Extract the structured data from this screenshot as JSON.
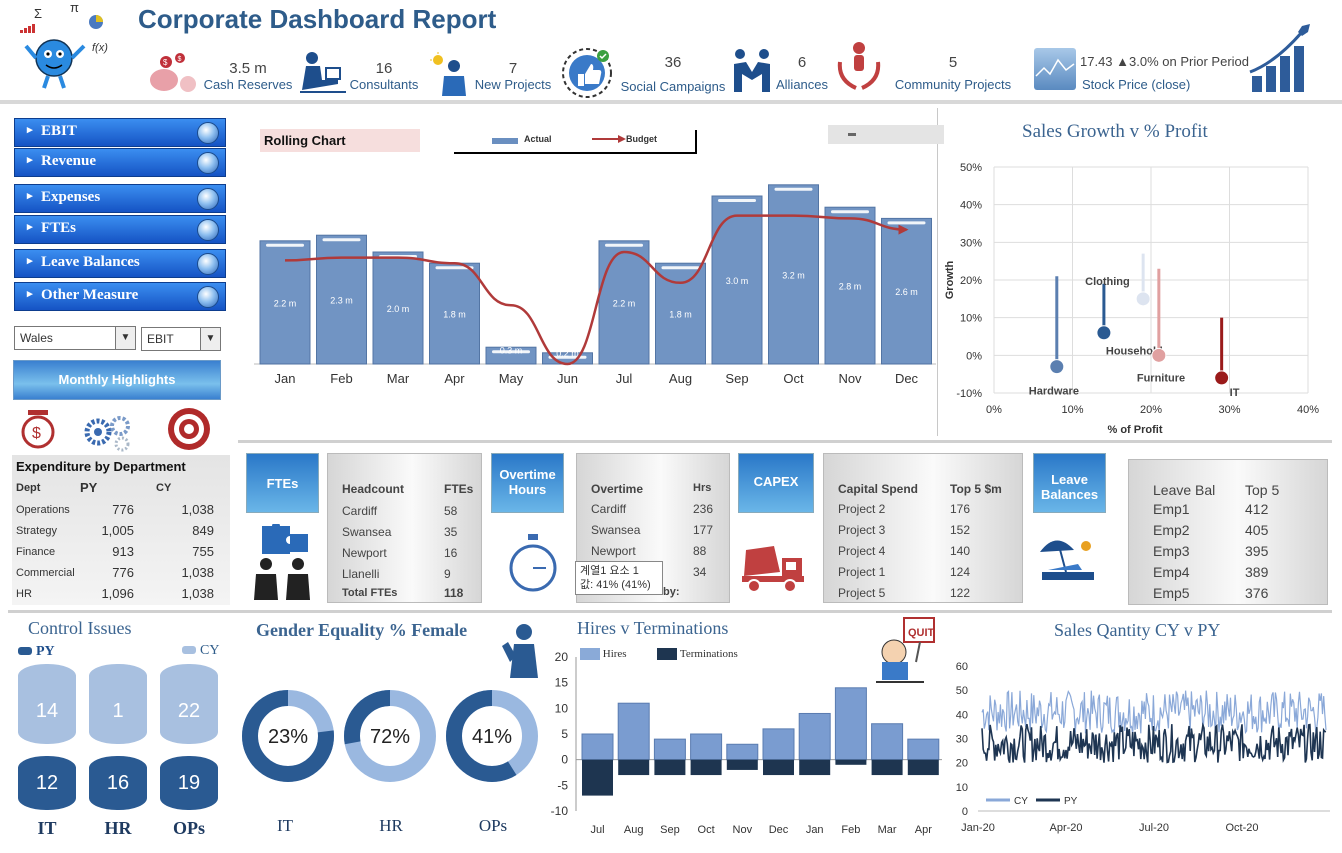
{
  "header": {
    "title": "Corporate Dashboard Report",
    "math_symbols": [
      "Σ",
      "π",
      "f(x)"
    ],
    "kpis": [
      {
        "value": "3.5 m",
        "label": "Cash Reserves",
        "icon": "piggy-bank-icon"
      },
      {
        "value": "16",
        "label": "Consultants",
        "icon": "consultant-icon"
      },
      {
        "value": "7",
        "label": "New Projects",
        "icon": "idea-person-icon"
      },
      {
        "value": "36",
        "label": "Social Campaigns",
        "icon": "thumbs-up-icon"
      },
      {
        "value": "6",
        "label": "Alliances",
        "icon": "handshake-icon"
      },
      {
        "value": "5",
        "label": "Community Projects",
        "icon": "helping-hands-icon"
      }
    ],
    "stock": {
      "value": "17.43",
      "change": "▲3.0% on Prior Period",
      "label": "Stock Price (close)"
    }
  },
  "nav": {
    "items": [
      "EBIT",
      "Revenue",
      "Expenses",
      "FTEs",
      "Leave Balances",
      "Other Measure"
    ],
    "region_select": "Wales",
    "measure_select": "EBIT",
    "highlights_label": "Monthly Highlights"
  },
  "expenditure": {
    "title": "Expenditure by Department",
    "headers": [
      "Dept",
      "PY",
      "CY"
    ],
    "rows": [
      [
        "Operations",
        "776",
        "1,038"
      ],
      [
        "Strategy",
        "1,005",
        "849"
      ],
      [
        "Finance",
        "913",
        "755"
      ],
      [
        "Commercial",
        "776",
        "1,038"
      ],
      [
        "HR",
        "1,096",
        "1,038"
      ]
    ]
  },
  "rolling": {
    "title": "Rolling Chart",
    "legend_actual": "Actual",
    "legend_budget": "Budget",
    "colors": {
      "bar": "#6a8fc0",
      "line": "#b03a3a"
    }
  },
  "chart_data": [
    {
      "type": "bar",
      "title": "Rolling Chart",
      "categories": [
        "Jan",
        "Feb",
        "Mar",
        "Apr",
        "May",
        "Jun",
        "Jul",
        "Aug",
        "Sep",
        "Oct",
        "Nov",
        "Dec"
      ],
      "series": [
        {
          "name": "Actual",
          "values": [
            2.2,
            2.3,
            2.0,
            1.8,
            0.3,
            0.2,
            2.2,
            1.8,
            3.0,
            3.2,
            2.8,
            2.6
          ]
        },
        {
          "name": "Budget",
          "values": [
            1.85,
            1.9,
            1.9,
            1.8,
            1.05,
            0.0,
            2.0,
            1.45,
            2.65,
            2.65,
            2.6,
            2.4
          ]
        }
      ],
      "data_labels": [
        "2.2 m",
        "2.3 m",
        "2.0 m",
        "1.8 m",
        "0.3 m",
        "0.2 m",
        "2.2 m",
        "1.8 m",
        "3.0 m",
        "3.2 m",
        "2.8 m",
        "2.6 m"
      ]
    },
    {
      "type": "scatter",
      "title": "Sales Growth v % Profit",
      "xlabel": "% of Profit",
      "ylabel": "Growth",
      "xlim": [
        0,
        40
      ],
      "ylim": [
        -10,
        50
      ],
      "x_ticks": [
        "0%",
        "10%",
        "20%",
        "30%",
        "40%"
      ],
      "y_ticks": [
        "-10%",
        "0%",
        "10%",
        "20%",
        "30%",
        "40%",
        "50%"
      ],
      "points": [
        {
          "name": "Hardware",
          "x": 8,
          "y": -3,
          "top": 21,
          "color": "#5b7fb0"
        },
        {
          "name": "Household",
          "x": 14,
          "y": 6,
          "top": 19,
          "color": "#2a5a92"
        },
        {
          "name": "Clothing",
          "x": 19,
          "y": 15,
          "top": 27,
          "color": "#dde4f0"
        },
        {
          "name": "Furniture",
          "x": 21,
          "y": 0,
          "top": 23,
          "color": "#e0a0a0"
        },
        {
          "name": "IT",
          "x": 29,
          "y": -6,
          "top": 10,
          "color": "#9a1a1a"
        }
      ]
    },
    {
      "type": "bar",
      "title": "Hires v Terminations",
      "categories": [
        "Jul",
        "Aug",
        "Sep",
        "Oct",
        "Nov",
        "Dec",
        "Jan",
        "Feb",
        "Mar",
        "Apr"
      ],
      "ylim": [
        -10,
        20
      ],
      "y_ticks": [
        "-10",
        "-5",
        "0",
        "5",
        "10",
        "15",
        "20"
      ],
      "series": [
        {
          "name": "Hires",
          "values": [
            5,
            11,
            4,
            5,
            3,
            6,
            9,
            14,
            7,
            4
          ]
        },
        {
          "name": "Terminations",
          "values": [
            -7,
            -3,
            -3,
            -3,
            -2,
            -3,
            -3,
            -1,
            -3,
            -3
          ]
        }
      ]
    },
    {
      "type": "line",
      "title": "Sales Qantity CY v PY",
      "ylim": [
        0,
        60
      ],
      "y_ticks": [
        "0",
        "10",
        "20",
        "30",
        "40",
        "50",
        "60"
      ],
      "x_ticks": [
        "Jan-20",
        "Apr-20",
        "Jul-20",
        "Oct-20"
      ],
      "series": [
        {
          "name": "CY",
          "range": [
            32,
            50
          ]
        },
        {
          "name": "PY",
          "range": [
            20,
            36
          ]
        }
      ]
    },
    {
      "type": "pie",
      "title": "Gender Equality % Female",
      "categories": [
        "IT",
        "HR",
        "OPs"
      ],
      "values": [
        23,
        72,
        41
      ],
      "labels": [
        "23%",
        "72%",
        "41%"
      ]
    }
  ],
  "ftes": {
    "tile": "FTEs",
    "headers": [
      "Headcount",
      "FTEs"
    ],
    "rows": [
      [
        "Cardiff",
        "58"
      ],
      [
        "Swansea",
        "35"
      ],
      [
        "Newport",
        "16"
      ],
      [
        "Llanelli",
        "9"
      ]
    ],
    "total": [
      "Total FTEs",
      "118"
    ]
  },
  "overtime": {
    "tile": "Overtime Hours",
    "headers": [
      "Overtime",
      "Hrs"
    ],
    "rows": [
      [
        "Cardiff",
        "236"
      ],
      [
        "Swansea",
        "177"
      ],
      [
        "Newport",
        "88"
      ],
      [
        "",
        "34"
      ]
    ],
    "tooltip_line1": "계열1 요소 1",
    "tooltip_line2": "값: 41% (41%)",
    "trailing": "by:"
  },
  "capex": {
    "tile": "CAPEX",
    "headers": [
      "Capital Spend",
      "Top 5 $m"
    ],
    "rows": [
      [
        "Project 2",
        "176"
      ],
      [
        "Project 3",
        "152"
      ],
      [
        "Project 4",
        "140"
      ],
      [
        "Project 1",
        "124"
      ],
      [
        "Project 5",
        "122"
      ]
    ]
  },
  "leave": {
    "tile": "Leave Balances",
    "headers": [
      "Leave Bal",
      "Top 5"
    ],
    "rows": [
      [
        "Emp1",
        "412"
      ],
      [
        "Emp2",
        "405"
      ],
      [
        "Emp3",
        "395"
      ],
      [
        "Emp4",
        "389"
      ],
      [
        "Emp5",
        "376"
      ]
    ]
  },
  "control": {
    "title": "Control Issues",
    "legend_py": "PY",
    "legend_cy": "CY",
    "groups": [
      {
        "label": "IT",
        "cy": "14",
        "py": "12"
      },
      {
        "label": "HR",
        "cy": "1",
        "py": "16"
      },
      {
        "label": "OPs",
        "cy": "22",
        "py": "19"
      }
    ]
  },
  "gender": {
    "title": "Gender Equality % Female",
    "labels": [
      "IT",
      "HR",
      "OPs"
    ]
  },
  "hires": {
    "title": "Hires v Terminations",
    "legend_hires": "Hires",
    "legend_term": "Terminations"
  },
  "sales": {
    "title": "Sales Qantity CY v PY",
    "legend_cy": "CY",
    "legend_py": "PY"
  },
  "scatter_title": "Sales Growth v % Profit"
}
